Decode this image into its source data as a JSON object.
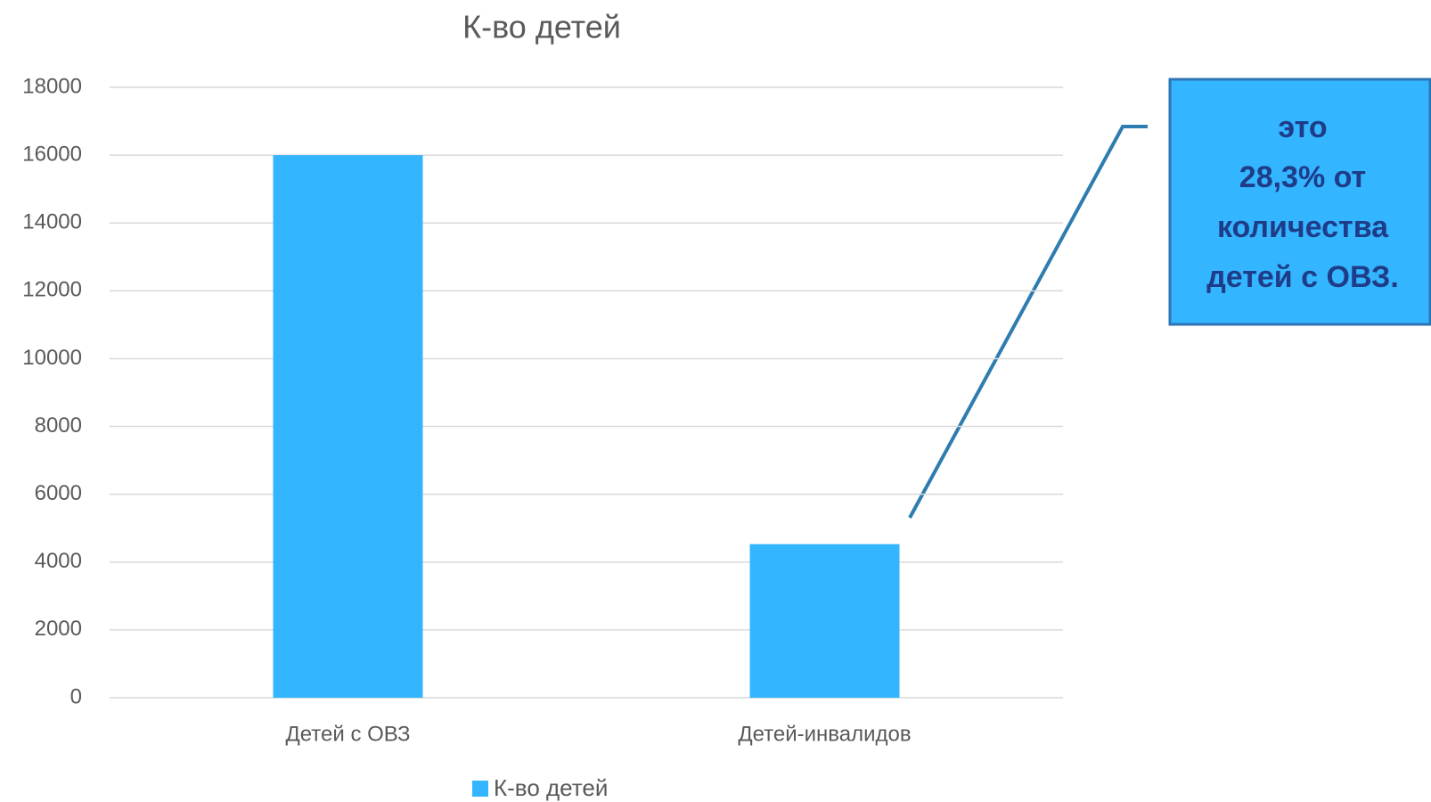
{
  "chart_data": {
    "type": "bar",
    "title": "К-во детей",
    "categories": [
      "Детей с ОВЗ",
      "Детей-инвалидов"
    ],
    "series": [
      {
        "name": "К-во детей",
        "color": "#33b5ff",
        "values": [
          16000,
          4530
        ]
      }
    ],
    "ylim": [
      0,
      18000
    ],
    "yticks": [
      0,
      2000,
      4000,
      6000,
      8000,
      10000,
      12000,
      14000,
      16000,
      18000
    ],
    "grid": true,
    "legend": "bottom",
    "annotation": [
      "это",
      "28,3% от",
      "количества",
      "детей с ОВЗ."
    ]
  }
}
